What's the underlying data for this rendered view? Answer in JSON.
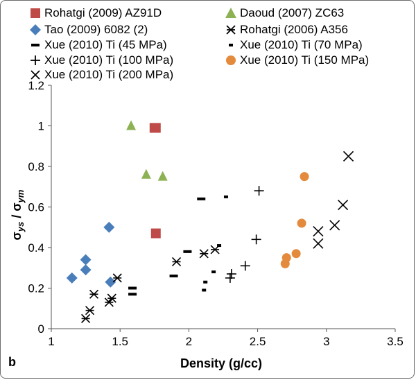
{
  "chart_data": {
    "type": "scatter",
    "panel_label": "b",
    "xlabel": "Density (g/cc)",
    "ylabel_main": "σ",
    "ylabel_sub1": "ys",
    "ylabel_sep": " / σ",
    "ylabel_sub2": "ym",
    "xlim": [
      1,
      3.5
    ],
    "ylim": [
      0,
      1.2
    ],
    "xticks": [
      "1",
      "1.5",
      "2",
      "2.5",
      "3",
      "3.5"
    ],
    "yticks": [
      "0",
      "0.2",
      "0.4",
      "0.6",
      "0.8",
      "1",
      "1.2"
    ],
    "grid": false,
    "legend_position": "top",
    "series": [
      {
        "name": "Rohatgi (2009) AZ91D",
        "marker": "square",
        "color": "#be4b48",
        "points": [
          [
            1.75,
            0.99
          ],
          [
            1.76,
            0.99
          ],
          [
            1.76,
            0.47
          ]
        ]
      },
      {
        "name": "Daoud (2007) ZC63",
        "marker": "triangle",
        "color": "#8db254",
        "points": [
          [
            1.58,
            1.0
          ],
          [
            1.69,
            0.76
          ],
          [
            1.81,
            0.75
          ]
        ]
      },
      {
        "name": "Tao (2009) 6082 (2)",
        "marker": "diamond",
        "color": "#4a7ebb",
        "points": [
          [
            1.15,
            0.25
          ],
          [
            1.25,
            0.34
          ],
          [
            1.25,
            0.29
          ],
          [
            1.42,
            0.5
          ],
          [
            1.43,
            0.23
          ]
        ]
      },
      {
        "name": "Rohatgi (2006) A356",
        "marker": "asterisk",
        "color": "#000000",
        "points": [
          [
            1.25,
            0.05
          ],
          [
            1.28,
            0.09
          ],
          [
            1.31,
            0.17
          ],
          [
            1.42,
            0.13
          ],
          [
            1.44,
            0.15
          ],
          [
            1.48,
            0.25
          ],
          [
            1.91,
            0.33
          ],
          [
            2.11,
            0.37
          ],
          [
            2.19,
            0.39
          ]
        ]
      },
      {
        "name": "Xue (2010) Ti  (45 MPa)",
        "marker": "dash",
        "color": "#000000",
        "points": [
          [
            1.59,
            0.2
          ],
          [
            1.59,
            0.17
          ],
          [
            1.89,
            0.26
          ],
          [
            1.99,
            0.38
          ],
          [
            2.09,
            0.64
          ]
        ]
      },
      {
        "name": "Xue (2010) Ti  (70 MPa)",
        "marker": "small-dash",
        "color": "#000000",
        "points": [
          [
            2.11,
            0.19
          ],
          [
            2.12,
            0.23
          ],
          [
            2.18,
            0.28
          ],
          [
            2.22,
            0.41
          ],
          [
            2.27,
            0.65
          ]
        ]
      },
      {
        "name": "Xue (2010) Ti  (100 MPa)",
        "marker": "plus",
        "color": "#000000",
        "points": [
          [
            2.3,
            0.25
          ],
          [
            2.31,
            0.27
          ],
          [
            2.41,
            0.31
          ],
          [
            2.49,
            0.44
          ],
          [
            2.51,
            0.68
          ]
        ]
      },
      {
        "name": "Xue (2010) Ti  (150 MPa)",
        "marker": "circle",
        "color": "#e38a3d",
        "points": [
          [
            2.7,
            0.32
          ],
          [
            2.71,
            0.35
          ],
          [
            2.78,
            0.37
          ],
          [
            2.82,
            0.52
          ],
          [
            2.84,
            0.75
          ]
        ]
      },
      {
        "name": "Xue (2010) Ti  (200 MPa)",
        "marker": "x",
        "color": "#000000",
        "points": [
          [
            2.94,
            0.42
          ],
          [
            2.94,
            0.48
          ],
          [
            3.06,
            0.51
          ],
          [
            3.12,
            0.61
          ],
          [
            3.16,
            0.85
          ]
        ]
      }
    ]
  }
}
